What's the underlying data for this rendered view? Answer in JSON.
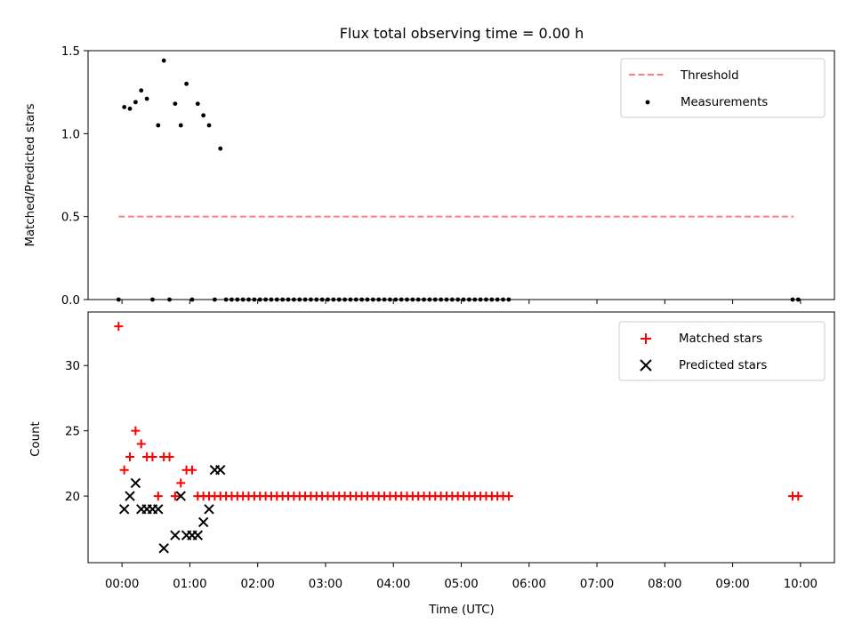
{
  "title": "Flux total observing time = 0.00 h",
  "chart_data": [
    {
      "type": "scatter",
      "ylabel": "Matched/Predicted stars",
      "ylim": [
        0,
        1.5
      ],
      "yticks": [
        "0.0",
        "0.5",
        "1.0",
        "1.5"
      ],
      "xlim_hours": [
        -0.5,
        10.5
      ],
      "threshold": {
        "name": "Threshold",
        "value": 0.5,
        "x_range": [
          "-00:03",
          "09:54"
        ],
        "color": "#ff7f7f",
        "style": "dashed"
      },
      "series": [
        {
          "name": "Measurements",
          "color": "#000000",
          "marker": "dot",
          "x": [
            "-00:03",
            "00:02",
            "00:07",
            "00:12",
            "00:17",
            "00:22",
            "00:27",
            "00:32",
            "00:37",
            "00:42",
            "00:47",
            "00:52",
            "00:57",
            "01:02",
            "01:07",
            "01:12",
            "01:17",
            "01:22",
            "01:27",
            "01:32",
            "01:37",
            "01:42",
            "01:47",
            "01:52",
            "01:57",
            "02:02",
            "02:07",
            "02:12",
            "02:17",
            "02:22",
            "02:27",
            "02:32",
            "02:37",
            "02:42",
            "02:47",
            "02:52",
            "02:57",
            "03:02",
            "03:07",
            "03:12",
            "03:17",
            "03:22",
            "03:27",
            "03:32",
            "03:37",
            "03:42",
            "03:47",
            "03:52",
            "03:57",
            "04:02",
            "04:07",
            "04:12",
            "04:17",
            "04:22",
            "04:27",
            "04:32",
            "04:37",
            "04:42",
            "04:47",
            "04:52",
            "04:57",
            "05:02",
            "05:07",
            "05:12",
            "05:17",
            "05:22",
            "05:27",
            "05:32",
            "05:37",
            "05:42",
            "09:53",
            "09:58"
          ],
          "y": [
            0,
            1.16,
            1.15,
            1.19,
            1.26,
            1.21,
            0,
            1.05,
            1.44,
            0,
            1.18,
            1.05,
            1.3,
            0,
            1.18,
            1.11,
            1.05,
            0,
            0.91,
            0,
            0,
            0,
            0,
            0,
            0,
            0,
            0,
            0,
            0,
            0,
            0,
            0,
            0,
            0,
            0,
            0,
            0,
            0,
            0,
            0,
            0,
            0,
            0,
            0,
            0,
            0,
            0,
            0,
            0,
            0,
            0,
            0,
            0,
            0,
            0,
            0,
            0,
            0,
            0,
            0,
            0,
            0,
            0,
            0,
            0,
            0,
            0,
            0,
            0,
            0,
            0,
            0
          ]
        }
      ]
    },
    {
      "type": "scatter",
      "ylabel": "Count",
      "xlabel": "Time (UTC)",
      "ylim": [
        14.9,
        34.1
      ],
      "yticks": [
        "20",
        "25",
        "30"
      ],
      "xticks": [
        "00:00",
        "01:00",
        "02:00",
        "03:00",
        "04:00",
        "05:00",
        "06:00",
        "07:00",
        "08:00",
        "09:00",
        "10:00"
      ],
      "xlim_hours": [
        -0.5,
        10.5
      ],
      "series": [
        {
          "name": "Matched stars",
          "color": "#ff0000",
          "marker": "plus",
          "x": [
            "-00:03",
            "00:02",
            "00:07",
            "00:12",
            "00:17",
            "00:22",
            "00:27",
            "00:32",
            "00:37",
            "00:42",
            "00:47",
            "00:52",
            "00:57",
            "01:02",
            "01:07",
            "01:12",
            "01:17",
            "01:22",
            "01:27",
            "01:32",
            "01:37",
            "01:42",
            "01:47",
            "01:52",
            "01:57",
            "02:02",
            "02:07",
            "02:12",
            "02:17",
            "02:22",
            "02:27",
            "02:32",
            "02:37",
            "02:42",
            "02:47",
            "02:52",
            "02:57",
            "03:02",
            "03:07",
            "03:12",
            "03:17",
            "03:22",
            "03:27",
            "03:32",
            "03:37",
            "03:42",
            "03:47",
            "03:52",
            "03:57",
            "04:02",
            "04:07",
            "04:12",
            "04:17",
            "04:22",
            "04:27",
            "04:32",
            "04:37",
            "04:42",
            "04:47",
            "04:52",
            "04:57",
            "05:02",
            "05:07",
            "05:12",
            "05:17",
            "05:22",
            "05:27",
            "05:32",
            "05:37",
            "05:42",
            "09:53",
            "09:58"
          ],
          "y": [
            33,
            22,
            23,
            25,
            24,
            23,
            23,
            20,
            23,
            23,
            20,
            21,
            22,
            22,
            20,
            20,
            20,
            20,
            20,
            20,
            20,
            20,
            20,
            20,
            20,
            20,
            20,
            20,
            20,
            20,
            20,
            20,
            20,
            20,
            20,
            20,
            20,
            20,
            20,
            20,
            20,
            20,
            20,
            20,
            20,
            20,
            20,
            20,
            20,
            20,
            20,
            20,
            20,
            20,
            20,
            20,
            20,
            20,
            20,
            20,
            20,
            20,
            20,
            20,
            20,
            20,
            20,
            20,
            20,
            20,
            20,
            20
          ]
        },
        {
          "name": "Predicted stars",
          "color": "#000000",
          "marker": "x",
          "x": [
            "00:02",
            "00:07",
            "00:12",
            "00:17",
            "00:22",
            "00:27",
            "00:32",
            "00:37",
            "00:47",
            "00:52",
            "00:57",
            "01:02",
            "01:07",
            "01:12",
            "01:17",
            "01:22",
            "01:27"
          ],
          "y": [
            19,
            20,
            21,
            19,
            19,
            19,
            19,
            16,
            17,
            20,
            17,
            17,
            17,
            18,
            19,
            22,
            22
          ]
        }
      ]
    }
  ]
}
